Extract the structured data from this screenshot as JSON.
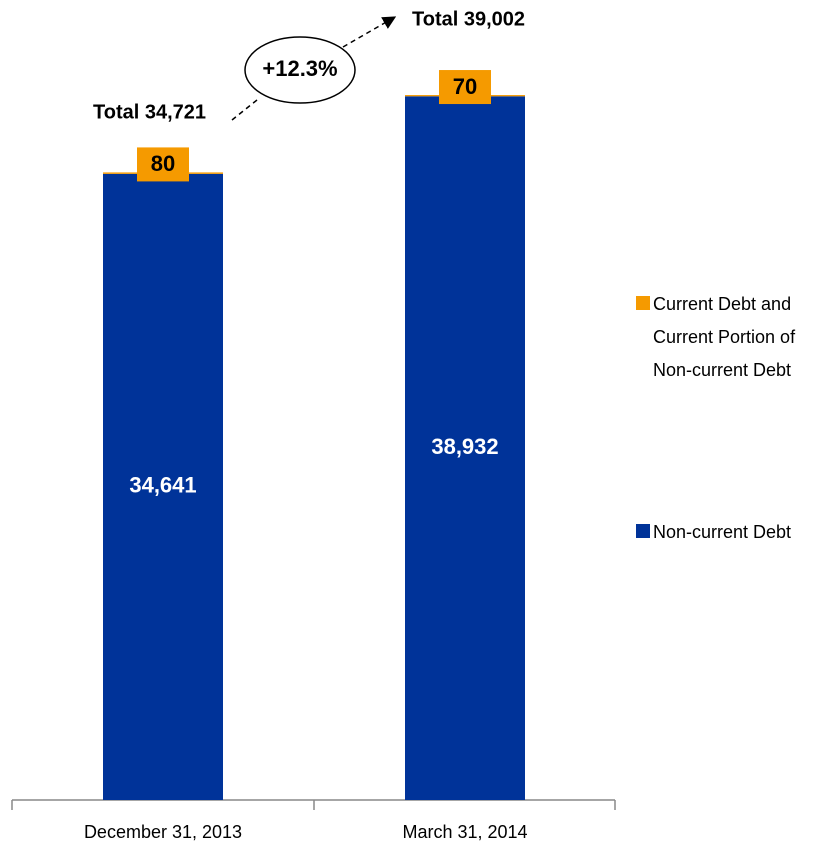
{
  "chart_data": {
    "type": "stacked_bar",
    "categories": [
      "December 31, 2013",
      "March 31, 2014"
    ],
    "series": [
      {
        "name": "Non-current Debt",
        "color": "#003399",
        "values": [
          34641,
          38932
        ],
        "value_labels": [
          "34,641",
          "38,932"
        ]
      },
      {
        "name": "Current Debt and Current Portion of Non-current Debt",
        "color": "#f59a00",
        "values": [
          80,
          70
        ]
      }
    ],
    "annotations": [
      "Total 34,721",
      "Total 39,002",
      "+12.3%"
    ],
    "ylim": [
      0,
      40000
    ]
  }
}
